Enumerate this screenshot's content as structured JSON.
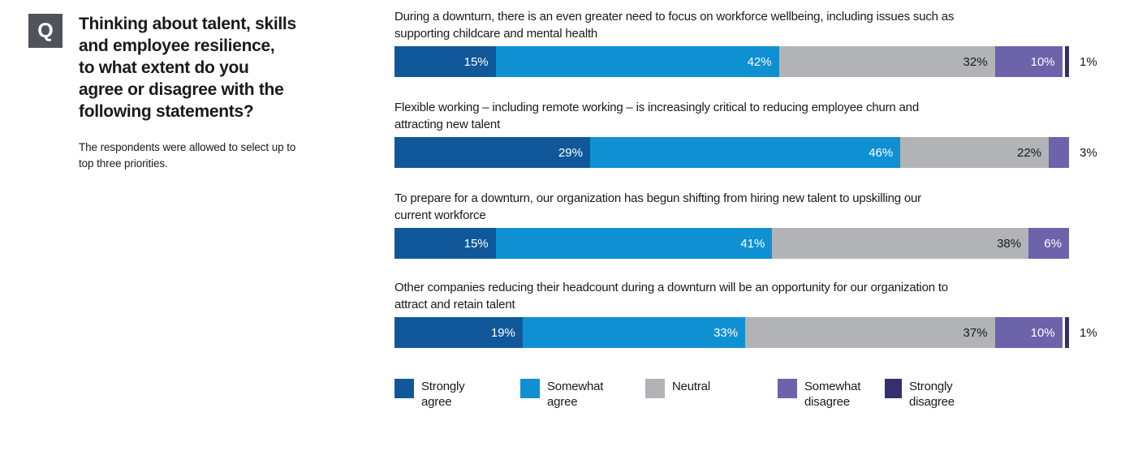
{
  "question_panel": {
    "q_label": "Q",
    "title_lines": [
      "Thinking about talent, skills",
      "and employee resilience,",
      "to what extent do you",
      "agree or disagree with the",
      "following statements?"
    ],
    "subtext_lines": [
      "The respondents were allowed to select up to",
      "top three priorities."
    ]
  },
  "colors": {
    "strongly_agree": "#11589B",
    "somewhat_agree": "#0F90D2",
    "neutral": "#B1B3B6",
    "somewhat_disagree": "#6C63AB",
    "strongly_disagree": "#362F6E",
    "question_badge_bg": "#4E545A",
    "text": "#1A1A1A"
  },
  "chart_data": {
    "type": "bar",
    "orientation": "horizontal",
    "stacking": "percent",
    "unit": "%",
    "xlim": [
      0,
      100
    ],
    "grid": false,
    "legend_position": "bottom",
    "categories": [
      "Strongly agree",
      "Somewhat agree",
      "Neutral",
      "Somewhat disagree",
      "Strongly disagree"
    ],
    "rows": [
      {
        "statement_lines": [
          "During a downturn, there is an even greater need to focus on workforce wellbeing, including issues such as",
          "supporting childcare and mental health"
        ],
        "segments": [
          {
            "category": "Strongly agree",
            "value": 15,
            "label": "15%"
          },
          {
            "category": "Somewhat agree",
            "value": 42,
            "label": "42%"
          },
          {
            "category": "Neutral",
            "value": 32,
            "label": "32%"
          },
          {
            "category": "Somewhat disagree",
            "value": 10,
            "label": "10%"
          },
          {
            "category": "Strongly disagree",
            "value": 1,
            "label": ""
          }
        ],
        "outside_label": "1%"
      },
      {
        "statement_lines": [
          "Flexible working – including remote working – is increasingly critical to reducing employee churn and",
          "attracting new talent"
        ],
        "segments": [
          {
            "category": "Strongly agree",
            "value": 29,
            "label": "29%"
          },
          {
            "category": "Somewhat agree",
            "value": 46,
            "label": "46%"
          },
          {
            "category": "Neutral",
            "value": 22,
            "label": "22%"
          },
          {
            "category": "Somewhat disagree",
            "value": 3,
            "label": ""
          }
        ],
        "outside_label": "3%"
      },
      {
        "statement_lines": [
          "To prepare for a downturn, our organization has begun shifting from hiring new talent to upskilling our",
          "current workforce"
        ],
        "segments": [
          {
            "category": "Strongly agree",
            "value": 15,
            "label": "15%"
          },
          {
            "category": "Somewhat agree",
            "value": 41,
            "label": "41%"
          },
          {
            "category": "Neutral",
            "value": 38,
            "label": "38%"
          },
          {
            "category": "Somewhat disagree",
            "value": 6,
            "label": "6%"
          }
        ],
        "outside_label": ""
      },
      {
        "statement_lines": [
          "Other companies reducing their headcount during a downturn will be an opportunity for our organization to",
          "attract and retain talent"
        ],
        "segments": [
          {
            "category": "Strongly agree",
            "value": 19,
            "label": "19%"
          },
          {
            "category": "Somewhat agree",
            "value": 33,
            "label": "33%"
          },
          {
            "category": "Neutral",
            "value": 37,
            "label": "37%"
          },
          {
            "category": "Somewhat disagree",
            "value": 10,
            "label": "10%"
          },
          {
            "category": "Strongly disagree",
            "value": 1,
            "label": ""
          }
        ],
        "outside_label": "1%"
      }
    ],
    "legend": [
      {
        "label": "Strongly agree",
        "color": "#11589B"
      },
      {
        "label": "Somewhat agree",
        "color": "#0F90D2"
      },
      {
        "label": "Neutral",
        "color": "#B1B3B6"
      },
      {
        "label": "Somewhat disagree",
        "color": "#6C63AB"
      },
      {
        "label": "Strongly disagree",
        "color": "#362F6E"
      }
    ]
  }
}
